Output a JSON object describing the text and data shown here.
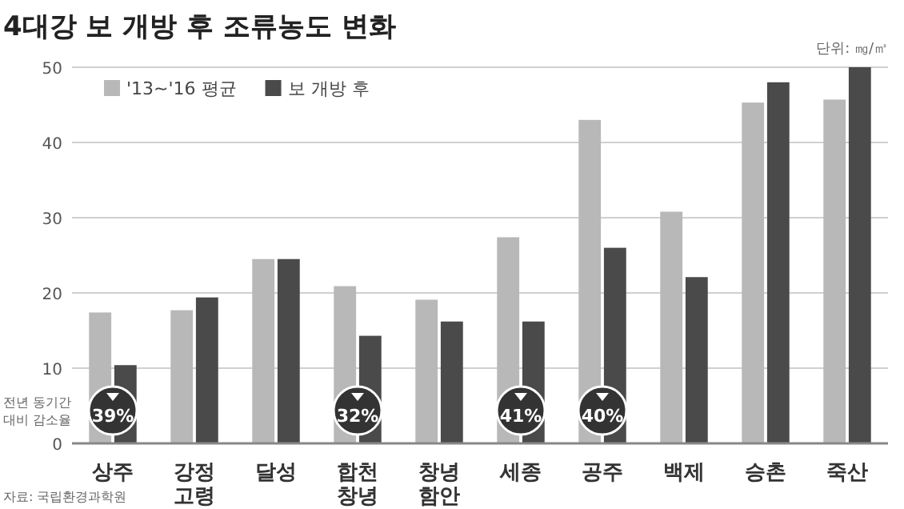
{
  "chart_data": {
    "type": "bar",
    "title": "4대강 보 개방 후 조류농도 변화",
    "categories": [
      "상주",
      "강정 고령",
      "달성",
      "합천 창녕",
      "창녕 함안",
      "세종",
      "공주",
      "백제",
      "승촌",
      "죽산"
    ],
    "series": [
      {
        "name": "'13~'16 평균",
        "color": "#b8b8b8",
        "values": [
          17.4,
          17.7,
          24.5,
          20.9,
          19.1,
          27.4,
          43,
          30.8,
          45.3,
          45.7
        ]
      },
      {
        "name": "보 개방 후",
        "color": "#4a4a4a",
        "values": [
          10.4,
          19.4,
          24.5,
          14.3,
          16.2,
          16.2,
          26,
          22.1,
          48,
          50
        ]
      }
    ],
    "ylim": [
      0,
      50
    ],
    "yticks": [
      0,
      10,
      20,
      30,
      40,
      50
    ],
    "grid": "y",
    "legend": "top left",
    "annotations": [
      "단위: ㎎/㎥",
      "전년 동기간 대비 감소율",
      "자료: 국립환경과학원",
      {
        "text": "39%",
        "x": "상주",
        "y": 5
      },
      {
        "text": "32%",
        "x": "합천 창녕",
        "y": 5
      },
      {
        "text": "41%",
        "x": "세종",
        "y": 5
      },
      {
        "text": "40%",
        "x": "공주",
        "y": 5
      }
    ]
  }
}
